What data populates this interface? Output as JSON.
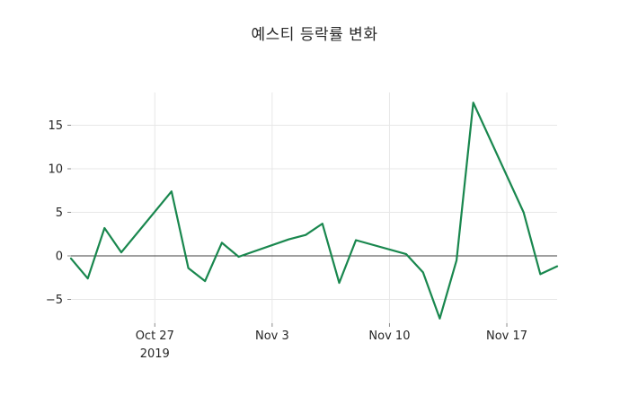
{
  "chart_data": {
    "type": "line",
    "title": "예스티 등락률 변화",
    "xlabel": "",
    "ylabel": "",
    "legend": null,
    "grid": true,
    "line_color": "#19874e",
    "zero_line_color": "#3f3f3f",
    "grid_color": "#e7e7e7",
    "text_color": "#262626",
    "tick_color": "#8a8a8a",
    "dates": [
      "2019-10-22",
      "2019-10-23",
      "2019-10-24",
      "2019-10-25",
      "2019-10-28",
      "2019-10-29",
      "2019-10-30",
      "2019-10-31",
      "2019-11-01",
      "2019-11-04",
      "2019-11-05",
      "2019-11-06",
      "2019-11-07",
      "2019-11-08",
      "2019-11-11",
      "2019-11-12",
      "2019-11-13",
      "2019-11-14",
      "2019-11-15",
      "2019-11-18",
      "2019-11-19",
      "2019-11-20"
    ],
    "values": [
      -0.3,
      -2.6,
      3.2,
      0.4,
      7.4,
      -1.4,
      -2.9,
      1.5,
      -0.1,
      1.9,
      2.4,
      3.7,
      -3.1,
      1.8,
      0.2,
      -1.9,
      -7.2,
      -0.5,
      17.6,
      5.0,
      -2.1,
      -1.2
    ],
    "y_ticks": [
      -5,
      0,
      5,
      10,
      15
    ],
    "y_tick_labels": [
      "−5",
      "0",
      "5",
      "10",
      "15"
    ],
    "x_ticks": [
      {
        "date": "2019-10-27",
        "lines": [
          "Oct 27",
          "2019"
        ]
      },
      {
        "date": "2019-11-03",
        "lines": [
          "Nov 3"
        ]
      },
      {
        "date": "2019-11-10",
        "lines": [
          "Nov 10"
        ]
      },
      {
        "date": "2019-11-17",
        "lines": [
          "Nov 17"
        ]
      }
    ],
    "ylim": [
      -7.7,
      18.8
    ],
    "legend_position": "none"
  }
}
